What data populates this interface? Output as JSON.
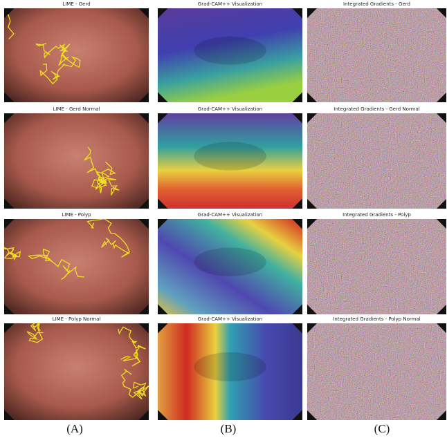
{
  "rows": [
    [
      {
        "title": "LIME - Gerd"
      },
      {
        "title": "Grad-CAM++ Visualization"
      },
      {
        "title": "Integrated Gradients - Gerd"
      }
    ],
    [
      {
        "title": "LIME - Gerd Normal"
      },
      {
        "title": "Grad-CAM++ Visualization"
      },
      {
        "title": "Integrated Gradients - Gerd Normal"
      }
    ],
    [
      {
        "title": "LIME - Polyp"
      },
      {
        "title": "Grad-CAM++ Visualization"
      },
      {
        "title": "Integrated Gradients - Polyp"
      }
    ],
    [
      {
        "title": "LIME - Polyp Normal"
      },
      {
        "title": "Grad-CAM++ Visualization"
      },
      {
        "title": "Integrated Gradients - Polyp Normal"
      }
    ]
  ],
  "columns": [
    "(A)",
    "(B)",
    "(C)"
  ]
}
